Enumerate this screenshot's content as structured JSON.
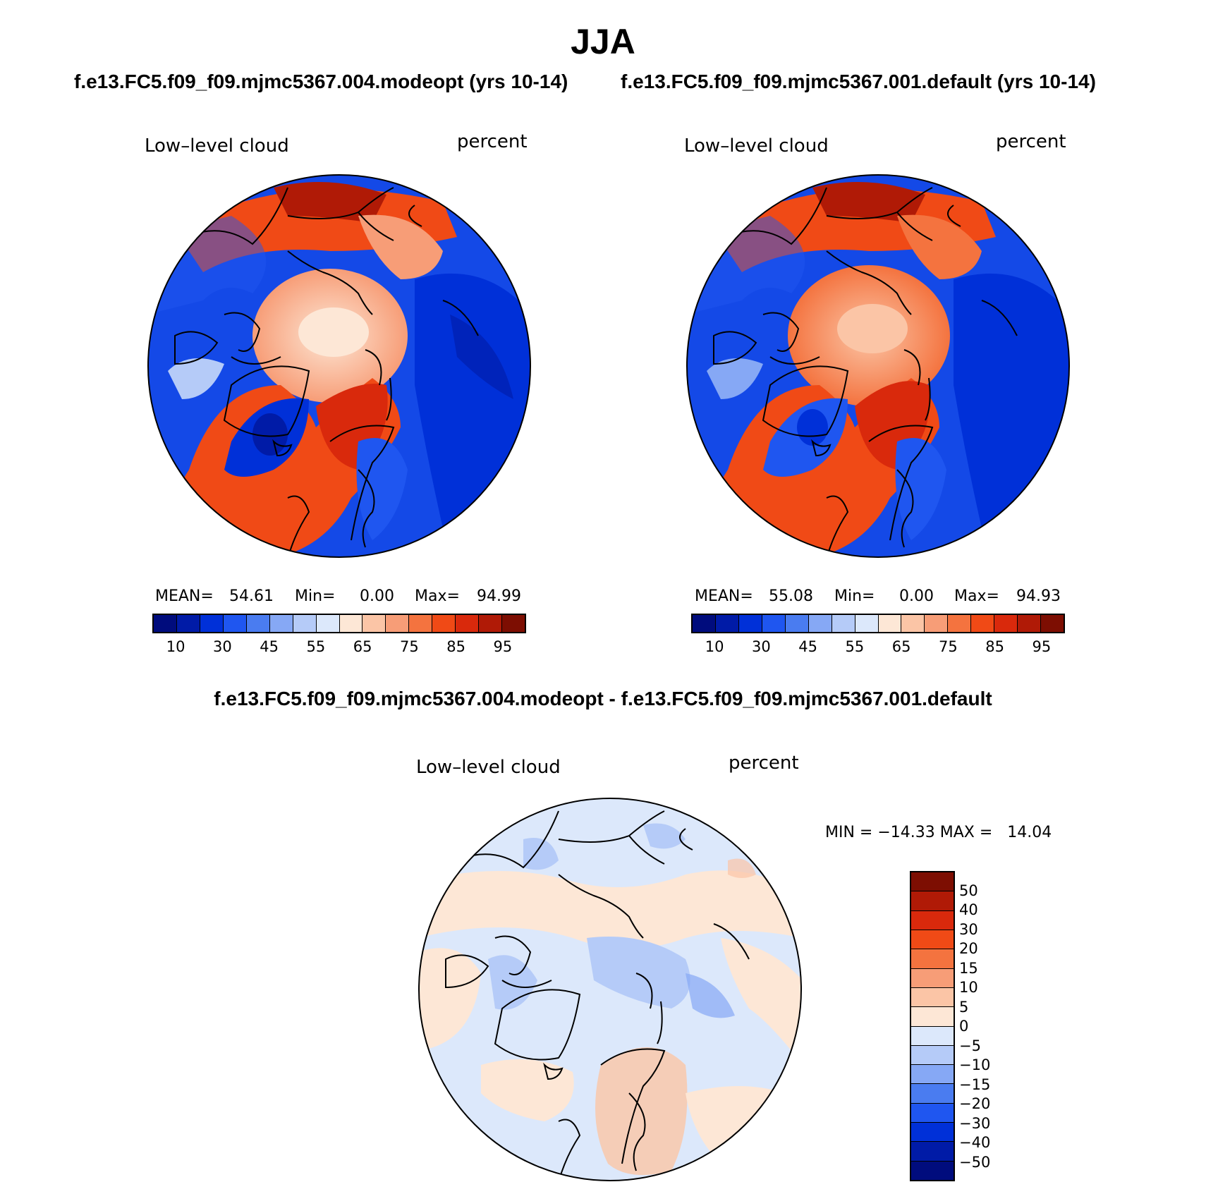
{
  "title": "JJA",
  "panels": [
    {
      "case": "f.e13.FC5.f09_f09.mjmc5367.004.modeopt (yrs 10-14)",
      "variable": "Low–level cloud",
      "units": "percent",
      "stats": {
        "mean_label": "MEAN=",
        "mean": "54.61",
        "min_label": "Min=",
        "min": "0.00",
        "max_label": "Max=",
        "max": "94.99"
      }
    },
    {
      "case": "f.e13.FC5.f09_f09.mjmc5367.001.default (yrs 10-14)",
      "variable": "Low–level cloud",
      "units": "percent",
      "stats": {
        "mean_label": "MEAN=",
        "mean": "55.08",
        "min_label": "Min=",
        "min": "0.00",
        "max_label": "Max=",
        "max": "94.93"
      }
    }
  ],
  "colorbar": {
    "colors": [
      "#000c7d",
      "#001ba7",
      "#0030d8",
      "#1f56f0",
      "#4a7cf0",
      "#86a8f5",
      "#b5cbf8",
      "#dce8fb",
      "#fde7d6",
      "#fbc5a6",
      "#f79d77",
      "#f4733f",
      "#f04a16",
      "#d9290c",
      "#b01a06",
      "#7d0e02"
    ],
    "tick_labels": [
      "10",
      "30",
      "45",
      "55",
      "65",
      "75",
      "85",
      "95"
    ]
  },
  "difference": {
    "title": "f.e13.FC5.f09_f09.mjmc5367.004.modeopt - f.e13.FC5.f09_f09.mjmc5367.001.default",
    "variable": "Low–level cloud",
    "units": "percent",
    "minmax": "MIN = −14.33 MAX =   14.04",
    "colorbar": {
      "colors_top_to_bottom": [
        "#7d0e02",
        "#b01a06",
        "#d9290c",
        "#f04a16",
        "#f4733f",
        "#f79d77",
        "#fbc5a6",
        "#fde7d6",
        "#dce8fb",
        "#b5cbf8",
        "#86a8f5",
        "#4a7cf0",
        "#1f56f0",
        "#0030d8",
        "#001ba7",
        "#000c7d"
      ],
      "tick_labels": [
        "50",
        "40",
        "30",
        "20",
        "15",
        "10",
        "5",
        "0",
        "−5",
        "−10",
        "−15",
        "−20",
        "−30",
        "−40",
        "−50"
      ]
    }
  }
}
